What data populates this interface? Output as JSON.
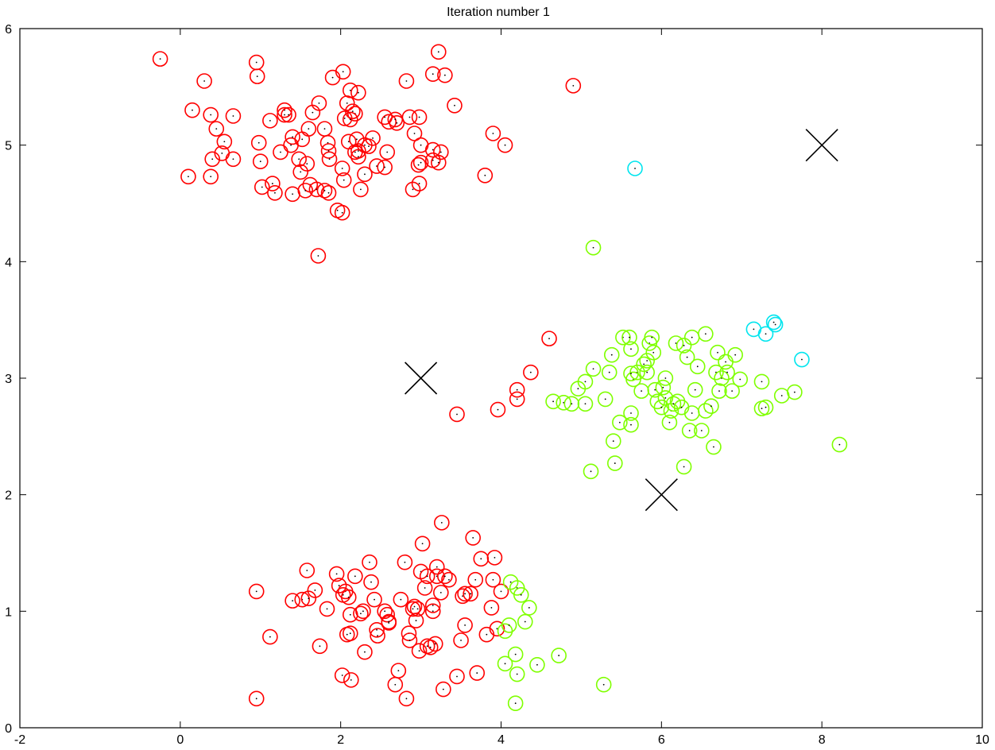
{
  "chart_data": {
    "type": "scatter",
    "title": "Iteration number 1",
    "xlabel": "",
    "ylabel": "",
    "xlim": [
      -2,
      10
    ],
    "ylim": [
      0,
      6
    ],
    "xticks": [
      "-2",
      "0",
      "2",
      "4",
      "6",
      "8",
      "10"
    ],
    "yticks": [
      "0",
      "1",
      "2",
      "3",
      "4",
      "5",
      "6"
    ],
    "grid": false,
    "colors": {
      "red": "#ff0000",
      "green": "#7fff00",
      "cyan": "#00e5ee",
      "centroid": "#000000",
      "dot": "#000000"
    },
    "series": [
      {
        "color": "red",
        "points": [
          [
            -0.25,
            5.74
          ],
          [
            0.3,
            5.55
          ],
          [
            0.95,
            5.71
          ],
          [
            0.96,
            5.59
          ],
          [
            0.15,
            5.3
          ],
          [
            0.38,
            5.26
          ],
          [
            0.66,
            5.25
          ],
          [
            0.45,
            5.14
          ],
          [
            0.55,
            5.03
          ],
          [
            0.4,
            4.88
          ],
          [
            0.66,
            4.88
          ],
          [
            0.52,
            4.93
          ],
          [
            0.1,
            4.73
          ],
          [
            0.38,
            4.73
          ],
          [
            0.98,
            5.02
          ],
          [
            1.0,
            4.86
          ],
          [
            1.02,
            4.64
          ],
          [
            1.15,
            4.67
          ],
          [
            1.18,
            4.59
          ],
          [
            1.4,
            4.58
          ],
          [
            1.12,
            5.21
          ],
          [
            1.3,
            5.3
          ],
          [
            1.35,
            5.26
          ],
          [
            1.4,
            5.07
          ],
          [
            1.52,
            5.05
          ],
          [
            1.38,
            5.0
          ],
          [
            1.25,
            4.94
          ],
          [
            1.48,
            4.88
          ],
          [
            1.58,
            4.84
          ],
          [
            1.5,
            4.77
          ],
          [
            1.62,
            4.66
          ],
          [
            1.7,
            4.62
          ],
          [
            1.73,
            5.36
          ],
          [
            1.65,
            5.28
          ],
          [
            1.6,
            5.14
          ],
          [
            1.8,
            5.14
          ],
          [
            1.84,
            5.02
          ],
          [
            1.85,
            4.95
          ],
          [
            1.86,
            4.88
          ],
          [
            1.8,
            4.61
          ],
          [
            1.85,
            4.59
          ],
          [
            1.96,
            4.44
          ],
          [
            2.02,
            4.42
          ],
          [
            2.04,
            4.7
          ],
          [
            2.02,
            4.8
          ],
          [
            1.72,
            4.05
          ],
          [
            1.9,
            5.58
          ],
          [
            2.03,
            5.63
          ],
          [
            2.08,
            5.36
          ],
          [
            2.12,
            5.47
          ],
          [
            2.22,
            5.45
          ],
          [
            2.15,
            5.29
          ],
          [
            2.05,
            5.23
          ],
          [
            2.18,
            5.27
          ],
          [
            2.12,
            5.22
          ],
          [
            2.1,
            5.03
          ],
          [
            2.2,
            5.05
          ],
          [
            2.18,
            4.94
          ],
          [
            2.22,
            4.95
          ],
          [
            2.3,
            5.0
          ],
          [
            2.35,
            4.99
          ],
          [
            2.25,
            4.62
          ],
          [
            2.3,
            4.75
          ],
          [
            2.45,
            4.82
          ],
          [
            2.55,
            4.81
          ],
          [
            2.4,
            5.06
          ],
          [
            2.58,
            4.94
          ],
          [
            2.6,
            5.2
          ],
          [
            2.55,
            5.24
          ],
          [
            2.7,
            5.19
          ],
          [
            2.68,
            5.22
          ],
          [
            2.82,
            5.55
          ],
          [
            2.86,
            5.24
          ],
          [
            2.92,
            5.1
          ],
          [
            3.0,
            5.0
          ],
          [
            2.98,
            5.24
          ],
          [
            2.9,
            4.62
          ],
          [
            2.98,
            4.67
          ],
          [
            2.97,
            4.83
          ],
          [
            3.0,
            4.85
          ],
          [
            3.15,
            4.96
          ],
          [
            3.25,
            4.94
          ],
          [
            3.15,
            4.87
          ],
          [
            3.22,
            4.85
          ],
          [
            3.15,
            5.61
          ],
          [
            3.22,
            5.8
          ],
          [
            3.3,
            5.6
          ],
          [
            3.42,
            5.34
          ],
          [
            3.8,
            4.74
          ],
          [
            3.9,
            5.1
          ],
          [
            4.05,
            5.0
          ],
          [
            4.9,
            5.51
          ],
          [
            4.6,
            3.34
          ],
          [
            4.37,
            3.05
          ],
          [
            4.2,
            2.9
          ],
          [
            4.2,
            2.82
          ],
          [
            3.96,
            2.73
          ],
          [
            3.45,
            2.69
          ],
          [
            0.95,
            1.17
          ],
          [
            0.95,
            0.25
          ],
          [
            1.12,
            0.78
          ],
          [
            1.4,
            1.09
          ],
          [
            1.52,
            1.1
          ],
          [
            1.58,
            1.35
          ],
          [
            1.6,
            1.11
          ],
          [
            1.68,
            1.18
          ],
          [
            1.74,
            0.7
          ],
          [
            1.83,
            1.02
          ],
          [
            1.95,
            1.32
          ],
          [
            1.98,
            1.22
          ],
          [
            2.03,
            1.14
          ],
          [
            2.06,
            1.17
          ],
          [
            2.1,
            1.12
          ],
          [
            2.12,
            0.97
          ],
          [
            2.08,
            0.8
          ],
          [
            2.12,
            0.81
          ],
          [
            2.02,
            0.45
          ],
          [
            2.13,
            0.41
          ],
          [
            2.18,
            1.3
          ],
          [
            2.25,
            0.98
          ],
          [
            2.3,
            0.65
          ],
          [
            2.28,
            1.0
          ],
          [
            2.36,
            1.42
          ],
          [
            2.38,
            1.25
          ],
          [
            2.42,
            1.1
          ],
          [
            2.45,
            0.84
          ],
          [
            2.46,
            0.79
          ],
          [
            2.55,
            1.0
          ],
          [
            2.58,
            0.97
          ],
          [
            2.6,
            0.9
          ],
          [
            2.68,
            0.37
          ],
          [
            2.72,
            0.49
          ],
          [
            2.8,
            1.42
          ],
          [
            2.75,
            1.1
          ],
          [
            2.82,
            0.25
          ],
          [
            2.85,
            0.81
          ],
          [
            2.86,
            0.75
          ],
          [
            2.9,
            1.02
          ],
          [
            2.92,
            1.04
          ],
          [
            2.94,
            0.92
          ],
          [
            2.96,
            1.02
          ],
          [
            2.98,
            0.66
          ],
          [
            3.0,
            1.34
          ],
          [
            3.02,
            1.58
          ],
          [
            3.05,
            1.2
          ],
          [
            3.08,
            1.3
          ],
          [
            3.08,
            0.7
          ],
          [
            3.12,
            0.69
          ],
          [
            3.15,
            1.0
          ],
          [
            3.15,
            1.05
          ],
          [
            3.18,
            0.72
          ],
          [
            3.2,
            1.38
          ],
          [
            3.2,
            1.3
          ],
          [
            3.25,
            1.16
          ],
          [
            3.26,
            1.76
          ],
          [
            3.28,
            0.33
          ],
          [
            3.3,
            1.3
          ],
          [
            3.35,
            1.27
          ],
          [
            3.45,
            0.44
          ],
          [
            3.5,
            0.75
          ],
          [
            3.52,
            1.13
          ],
          [
            3.55,
            1.15
          ],
          [
            3.55,
            0.88
          ],
          [
            3.62,
            1.15
          ],
          [
            3.65,
            1.63
          ],
          [
            3.68,
            1.27
          ],
          [
            3.7,
            0.47
          ],
          [
            3.75,
            1.45
          ],
          [
            3.82,
            0.8
          ],
          [
            3.88,
            1.03
          ],
          [
            3.9,
            1.27
          ],
          [
            3.92,
            1.46
          ],
          [
            3.95,
            0.85
          ],
          [
            4.0,
            1.17
          ],
          [
            1.3,
            5.26
          ],
          [
            2.6,
            0.91
          ],
          [
            2.22,
            4.9
          ],
          [
            1.56,
            4.61
          ]
        ]
      },
      {
        "color": "green",
        "points": [
          [
            5.15,
            4.12
          ],
          [
            4.65,
            2.8
          ],
          [
            4.78,
            2.79
          ],
          [
            4.88,
            2.78
          ],
          [
            4.96,
            2.91
          ],
          [
            5.05,
            2.97
          ],
          [
            5.05,
            2.78
          ],
          [
            5.15,
            3.08
          ],
          [
            5.3,
            2.82
          ],
          [
            5.38,
            3.2
          ],
          [
            5.35,
            3.05
          ],
          [
            5.48,
            2.62
          ],
          [
            5.4,
            2.46
          ],
          [
            5.42,
            2.27
          ],
          [
            5.12,
            2.2
          ],
          [
            5.62,
            2.7
          ],
          [
            5.62,
            2.6
          ],
          [
            5.65,
            2.99
          ],
          [
            5.7,
            3.05
          ],
          [
            5.75,
            2.89
          ],
          [
            5.78,
            3.12
          ],
          [
            5.82,
            3.15
          ],
          [
            5.85,
            3.3
          ],
          [
            5.9,
            3.22
          ],
          [
            5.92,
            2.9
          ],
          [
            5.95,
            2.8
          ],
          [
            6.0,
            2.75
          ],
          [
            6.02,
            2.92
          ],
          [
            6.05,
            2.83
          ],
          [
            6.1,
            2.62
          ],
          [
            6.12,
            2.72
          ],
          [
            6.15,
            2.78
          ],
          [
            6.2,
            2.8
          ],
          [
            6.25,
            2.75
          ],
          [
            6.28,
            2.24
          ],
          [
            6.35,
            2.55
          ],
          [
            6.38,
            2.7
          ],
          [
            6.42,
            2.9
          ],
          [
            6.45,
            3.1
          ],
          [
            6.5,
            2.55
          ],
          [
            6.55,
            2.72
          ],
          [
            6.62,
            2.76
          ],
          [
            6.65,
            2.41
          ],
          [
            6.68,
            3.05
          ],
          [
            6.72,
            2.89
          ],
          [
            6.75,
            3.0
          ],
          [
            6.8,
            3.14
          ],
          [
            6.82,
            3.05
          ],
          [
            6.88,
            2.89
          ],
          [
            6.92,
            3.2
          ],
          [
            6.98,
            2.99
          ],
          [
            7.25,
            2.97
          ],
          [
            7.25,
            2.74
          ],
          [
            7.3,
            2.75
          ],
          [
            7.5,
            2.85
          ],
          [
            7.66,
            2.88
          ],
          [
            8.22,
            2.43
          ],
          [
            5.52,
            3.35
          ],
          [
            5.6,
            3.35
          ],
          [
            5.62,
            3.25
          ],
          [
            5.88,
            3.35
          ],
          [
            6.18,
            3.3
          ],
          [
            6.32,
            3.18
          ],
          [
            6.55,
            3.38
          ],
          [
            6.05,
            3.0
          ],
          [
            6.28,
            3.28
          ],
          [
            6.7,
            3.22
          ],
          [
            5.62,
            3.04
          ],
          [
            5.82,
            3.05
          ],
          [
            6.38,
            3.35
          ],
          [
            4.12,
            1.25
          ],
          [
            4.2,
            1.2
          ],
          [
            4.25,
            1.14
          ],
          [
            4.35,
            1.03
          ],
          [
            4.3,
            0.91
          ],
          [
            4.05,
            0.83
          ],
          [
            4.1,
            0.88
          ],
          [
            4.18,
            0.63
          ],
          [
            4.05,
            0.55
          ],
          [
            4.2,
            0.46
          ],
          [
            4.45,
            0.54
          ],
          [
            4.72,
            0.62
          ],
          [
            4.18,
            0.21
          ],
          [
            5.28,
            0.37
          ]
        ]
      },
      {
        "color": "cyan",
        "points": [
          [
            5.67,
            4.8
          ],
          [
            7.15,
            3.42
          ],
          [
            7.3,
            3.38
          ],
          [
            7.4,
            3.48
          ],
          [
            7.42,
            3.46
          ],
          [
            7.75,
            3.16
          ]
        ]
      }
    ],
    "centroids": [
      [
        3,
        3
      ],
      [
        6,
        2
      ],
      [
        8,
        5
      ]
    ]
  }
}
